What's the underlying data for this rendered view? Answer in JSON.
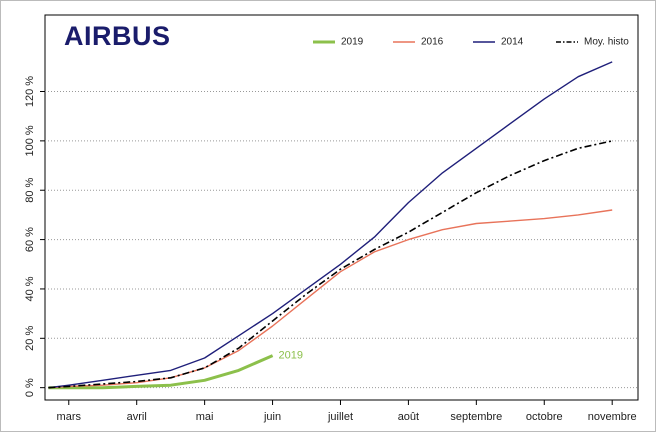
{
  "logo": "AIRBUS",
  "chart_data": {
    "type": "line",
    "x": [
      -0.3,
      0,
      0.5,
      1,
      1.5,
      2,
      2.5,
      3,
      3.5,
      4,
      4.5,
      5,
      5.5,
      6,
      6.5,
      7,
      7.5,
      8
    ],
    "series": [
      {
        "name": "2019",
        "color": "#8cc04b",
        "width": 3,
        "dash": "solid",
        "values": [
          0,
          0,
          0,
          0.5,
          1,
          3,
          7,
          13,
          null,
          null,
          null,
          null,
          null,
          null,
          null,
          null,
          null,
          null
        ]
      },
      {
        "name": "2016",
        "color": "#e8735a",
        "width": 1.4,
        "dash": "solid",
        "values": [
          0,
          0.5,
          1,
          2,
          4,
          8,
          15,
          25,
          36,
          47,
          55,
          60,
          64,
          66.5,
          67.5,
          68.5,
          70,
          72
        ]
      },
      {
        "name": "2014",
        "color": "#1f1f7a",
        "width": 1.4,
        "dash": "solid",
        "values": [
          0,
          1,
          3,
          5,
          7,
          12,
          21,
          30,
          40,
          50,
          61,
          75,
          87,
          97,
          107,
          117,
          126,
          132
        ]
      },
      {
        "name": "Moy. histo",
        "color": "#000000",
        "width": 1.6,
        "dash": "dashdot",
        "values": [
          0,
          0.5,
          1.5,
          2.5,
          4,
          8,
          16,
          27,
          38,
          48,
          56,
          63,
          71,
          79,
          86,
          92,
          97,
          100
        ]
      }
    ],
    "annotations": [
      {
        "text": "2019",
        "series": 0
      }
    ],
    "xlim": [
      -0.35,
      8.38
    ],
    "xticks": [
      {
        "value": 0,
        "label": "mars"
      },
      {
        "value": 1,
        "label": "avril"
      },
      {
        "value": 2,
        "label": "mai"
      },
      {
        "value": 3,
        "label": "juin"
      },
      {
        "value": 4,
        "label": "juillet"
      },
      {
        "value": 5,
        "label": "août"
      },
      {
        "value": 6,
        "label": "septembre"
      },
      {
        "value": 7,
        "label": "octobre"
      },
      {
        "value": 8,
        "label": "novembre"
      }
    ],
    "ylim": [
      -5,
      151
    ],
    "yticks": [
      {
        "value": 0,
        "label": "0 %"
      },
      {
        "value": 20,
        "label": "20 %"
      },
      {
        "value": 40,
        "label": "40 %"
      },
      {
        "value": 60,
        "label": "60 %"
      },
      {
        "value": 80,
        "label": "80 %"
      },
      {
        "value": 100,
        "label": "100 %"
      },
      {
        "value": 120,
        "label": "120 %"
      }
    ],
    "grid": true
  }
}
